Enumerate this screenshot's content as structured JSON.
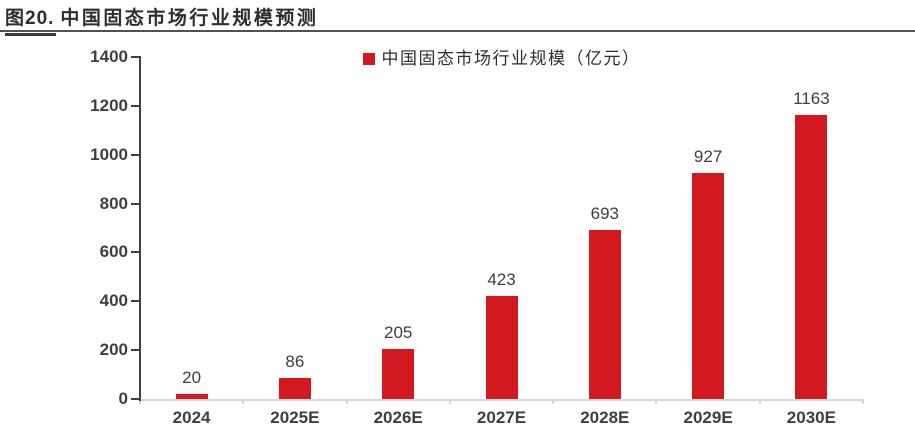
{
  "header": {
    "figure_label": "图20.",
    "title": "中国固态市场行业规模预测"
  },
  "chart_data": {
    "type": "bar",
    "title": "图20. 中国固态市场行业规模预测",
    "legend": "中国固态市场行业规模（亿元）",
    "unit": "亿元",
    "categories": [
      "2024",
      "2025E",
      "2026E",
      "2027E",
      "2028E",
      "2029E",
      "2030E"
    ],
    "values": [
      20,
      86,
      205,
      423,
      693,
      927,
      1163
    ],
    "xlabel": "",
    "ylabel": "",
    "ylim": [
      0,
      1400
    ],
    "ytick_step": 200,
    "yticks": [
      0,
      200,
      400,
      600,
      800,
      1000,
      1200,
      1400
    ],
    "grid": false,
    "legend_position": "top-center",
    "bar_color": "#D1191F"
  },
  "colors": {
    "bar": "#D1191F",
    "axis_dark": "#404040",
    "axis_light": "#D7D7D7",
    "label_text": "#3F3F3F",
    "title_text": "#2E2E2E"
  }
}
